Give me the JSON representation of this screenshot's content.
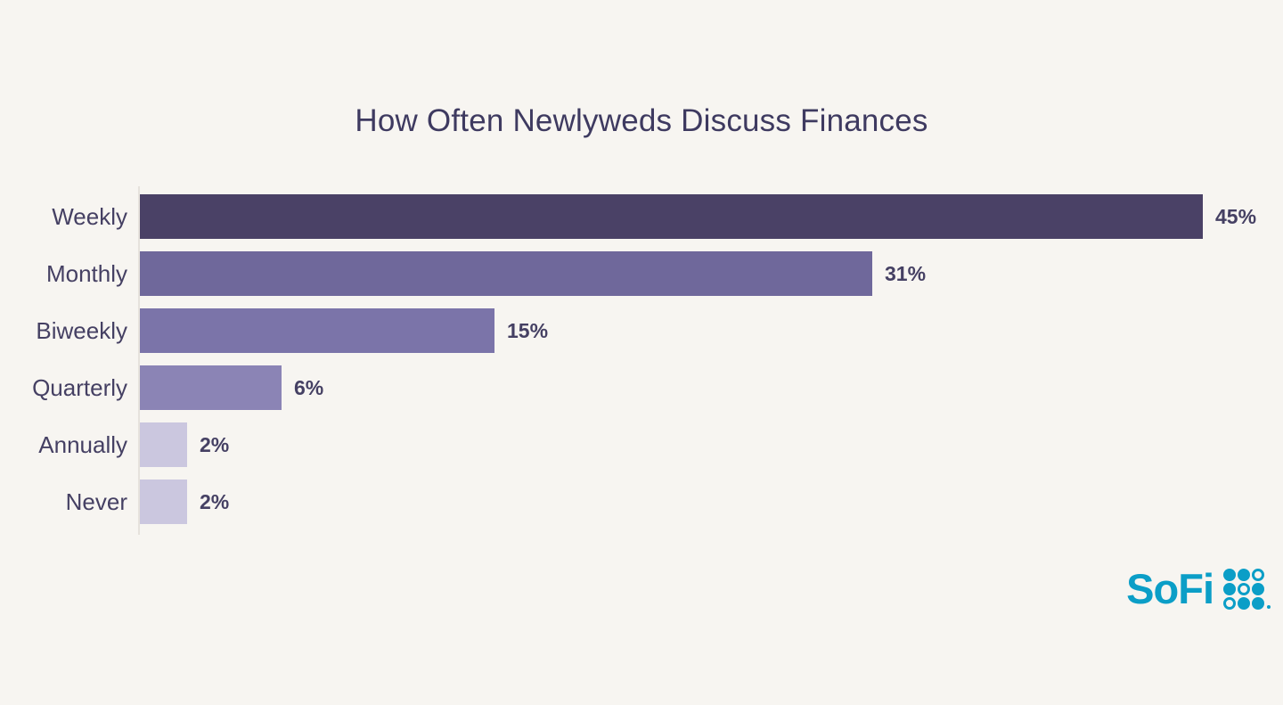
{
  "chart_data": {
    "type": "bar",
    "orientation": "horizontal",
    "title": "How Often Newlyweds Discuss Finances",
    "categories": [
      "Weekly",
      "Monthly",
      "Biweekly",
      "Quarterly",
      "Annually",
      "Never"
    ],
    "values": [
      45,
      31,
      15,
      6,
      2,
      2
    ],
    "value_labels": [
      "45%",
      "31%",
      "15%",
      "6%",
      "2%",
      "2%"
    ],
    "bar_colors": [
      "#4a4166",
      "#6f689b",
      "#7b74a9",
      "#8b84b5",
      "#cbc7df",
      "#cbc7df"
    ],
    "xlim": [
      0,
      48
    ],
    "xlabel": "",
    "ylabel": "",
    "grid": "off",
    "legend": "none",
    "value_label_position": "right-of-bar"
  },
  "colors": {
    "background": "#f7f5f1",
    "title_text": "#3e3a60",
    "category_text": "#454063",
    "value_text": "#454063",
    "axis_line": "#e6e2dc",
    "logo": "#0b9ec7"
  },
  "branding": {
    "logo_text": "SoFi",
    "logo_grid_pattern": [
      "filled",
      "filled",
      "outline",
      "filled",
      "outline",
      "filled",
      "outline",
      "filled",
      "filled"
    ]
  }
}
